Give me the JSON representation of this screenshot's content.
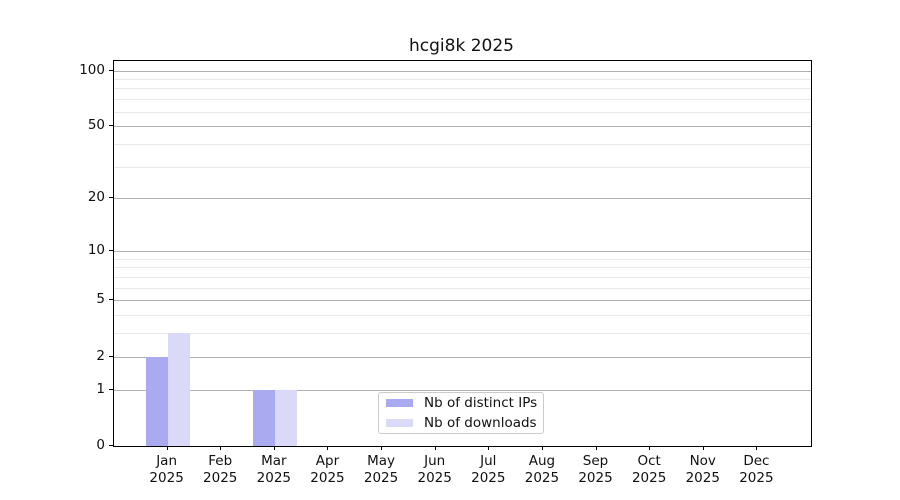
{
  "chart_data": {
    "type": "bar",
    "title": "hcgi8k 2025",
    "categories": [
      "Jan 2025",
      "Feb 2025",
      "Mar 2025",
      "Apr 2025",
      "May 2025",
      "Jun 2025",
      "Jul 2025",
      "Aug 2025",
      "Sep 2025",
      "Oct 2025",
      "Nov 2025",
      "Dec 2025"
    ],
    "series": [
      {
        "name": "Nb of distinct IPs",
        "color": "#aaaaf0",
        "values": [
          2,
          0,
          1,
          0,
          0,
          0,
          0,
          0,
          0,
          0,
          0,
          0
        ]
      },
      {
        "name": "Nb of downloads",
        "color": "#dadaf8",
        "values": [
          3,
          0,
          1,
          0,
          0,
          0,
          0,
          0,
          0,
          0,
          0,
          0
        ]
      }
    ],
    "xlabel": "",
    "ylabel": "",
    "yscale": "log1p",
    "ylim": [
      0,
      113
    ],
    "y_major_ticks": [
      0,
      1,
      2,
      5,
      10,
      20,
      50,
      100
    ],
    "y_minor_ticks": [
      3,
      4,
      6,
      7,
      8,
      9,
      30,
      40,
      60,
      70,
      80,
      90
    ],
    "grid": true,
    "legend_position": "lower center"
  },
  "colors": {
    "major_grid": "#b0b0b0",
    "minor_grid": "#e9e9e9",
    "axis": "#000000",
    "legend_border": "#cbcbcb"
  }
}
